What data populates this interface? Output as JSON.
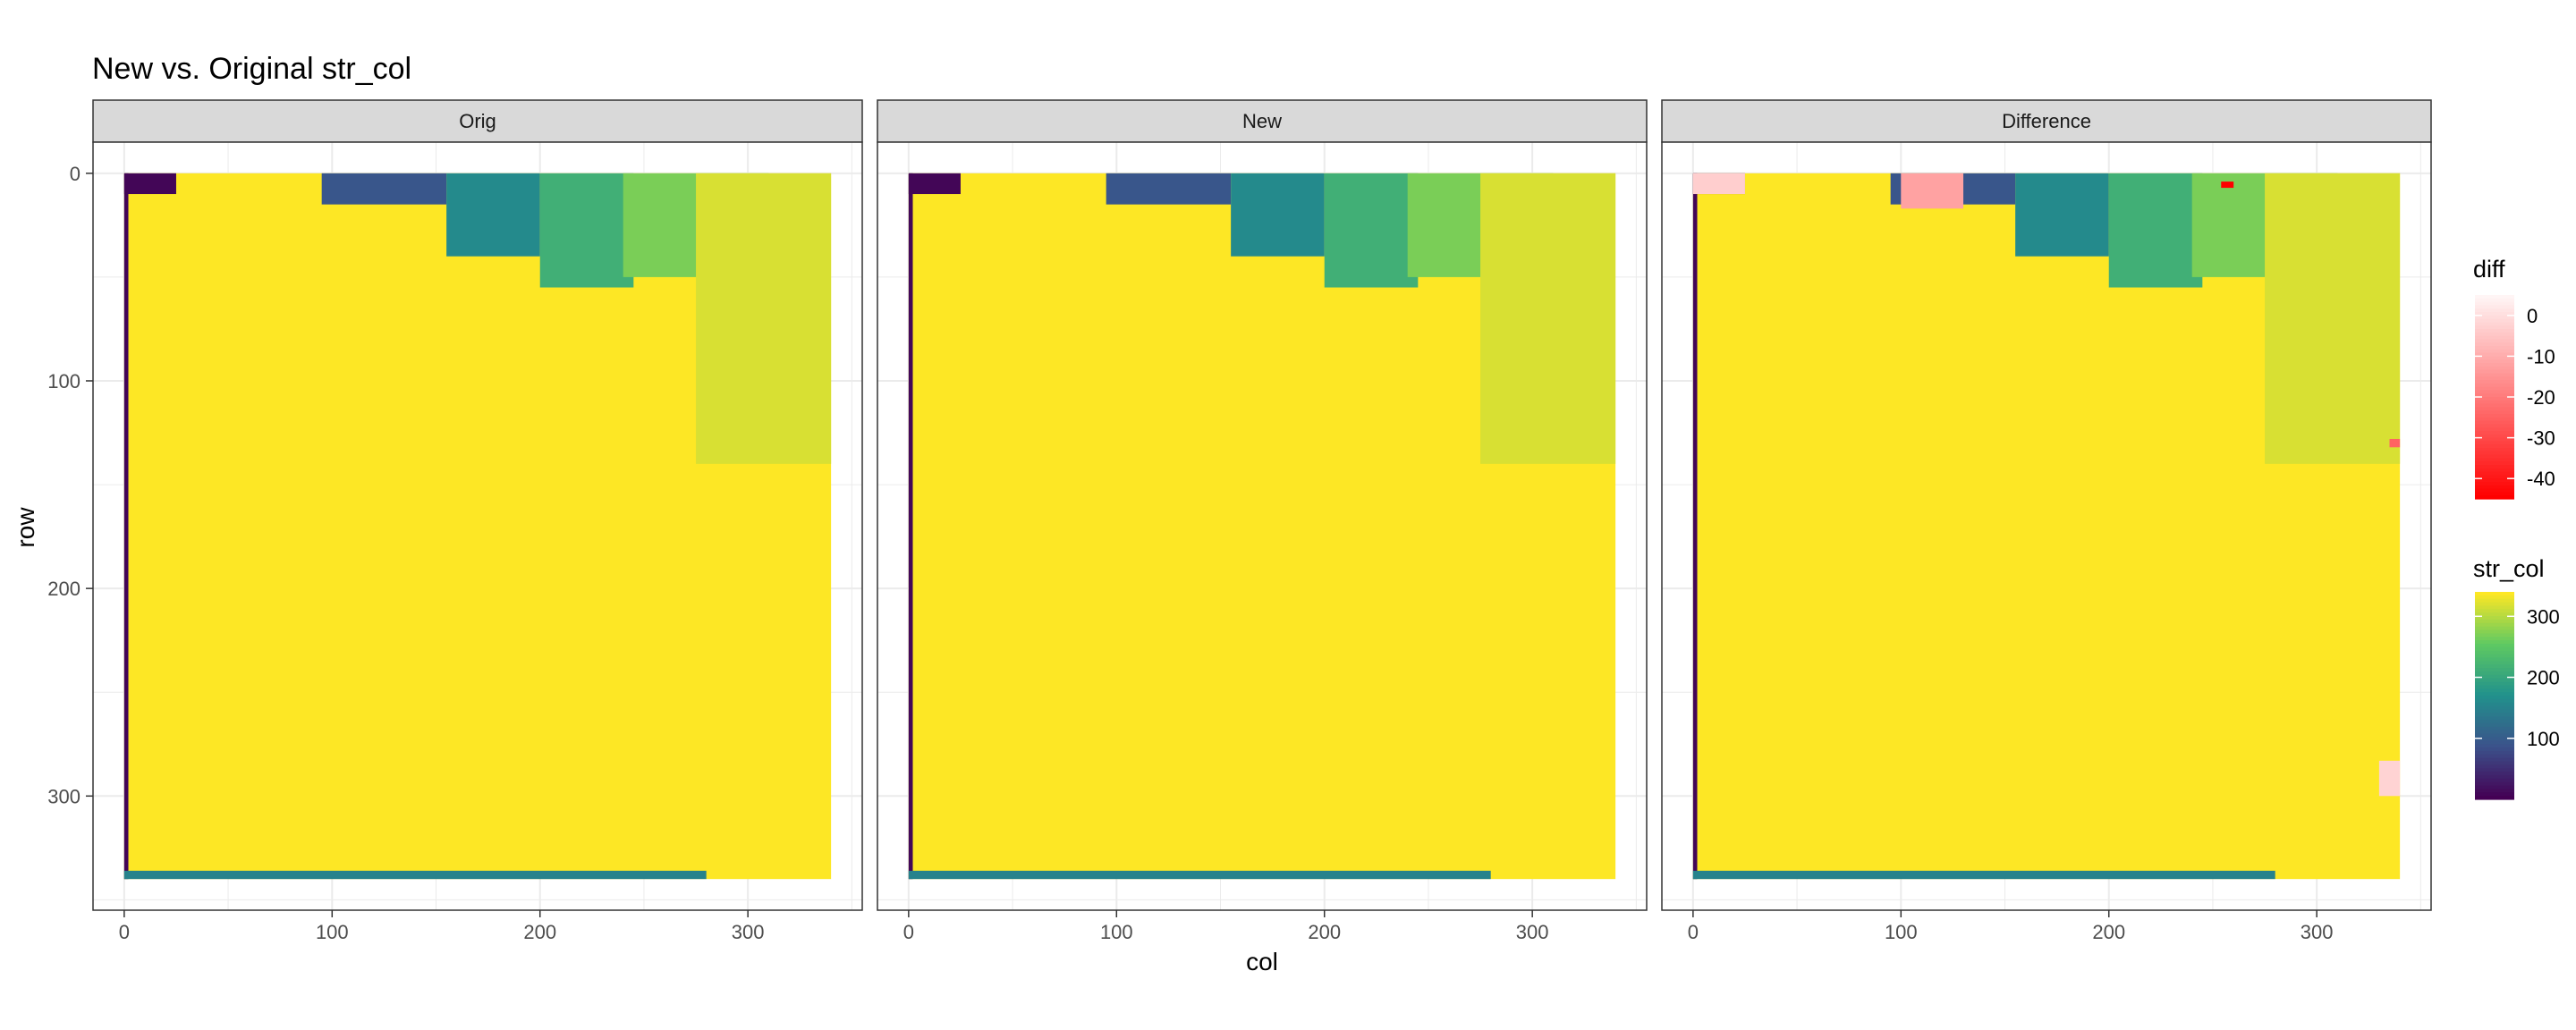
{
  "chart_data": {
    "type": "heatmap",
    "title": "New vs. Original str_col",
    "xlabel": "col",
    "ylabel": "row",
    "xlim": [
      -15,
      355
    ],
    "ylim": [
      -15,
      355
    ],
    "y_reversed": true,
    "grid": true,
    "x_ticks": [
      0,
      100,
      200,
      300
    ],
    "y_ticks": [
      0,
      100,
      200,
      300
    ],
    "x_tick_labels": [
      "0",
      "100",
      "200",
      "300"
    ],
    "y_tick_labels": [
      "0",
      "100",
      "200",
      "300"
    ],
    "data_extent": {
      "col": [
        0,
        340
      ],
      "row": [
        0,
        340
      ]
    },
    "panels": [
      {
        "label": "Orig",
        "key": "orig"
      },
      {
        "label": "New",
        "key": "new"
      },
      {
        "label": "Difference",
        "key": "diff"
      }
    ],
    "str_col_regions": [
      {
        "name": "left-edge strip",
        "str_col": 5,
        "col": [
          0,
          2
        ],
        "row": [
          0,
          340
        ]
      },
      {
        "name": "top-left corner",
        "str_col": 5,
        "col": [
          0,
          25
        ],
        "row": [
          0,
          10
        ]
      },
      {
        "name": "top region A",
        "str_col": 90,
        "col": [
          95,
          155
        ],
        "row": [
          0,
          15
        ]
      },
      {
        "name": "top region B",
        "str_col": 160,
        "col": [
          155,
          200
        ],
        "row": [
          0,
          40
        ]
      },
      {
        "name": "top region C",
        "str_col": 215,
        "col": [
          200,
          245
        ],
        "row": [
          0,
          55
        ]
      },
      {
        "name": "top region D",
        "str_col": 270,
        "col": [
          240,
          310
        ],
        "row": [
          0,
          50
        ]
      },
      {
        "name": "top-right region",
        "str_col": 320,
        "col": [
          275,
          340
        ],
        "row": [
          0,
          140
        ]
      },
      {
        "name": "bottom edge",
        "str_col": 150,
        "col": [
          0,
          280
        ],
        "row": [
          336,
          340
        ]
      }
    ],
    "background_str_col": 340,
    "diff_regions": [
      {
        "diff": -3,
        "col": [
          0,
          25
        ],
        "row": [
          0,
          10
        ]
      },
      {
        "diff": -12,
        "col": [
          100,
          130
        ],
        "row": [
          0,
          17
        ]
      },
      {
        "diff": -45,
        "col": [
          254,
          260
        ],
        "row": [
          4,
          7
        ]
      },
      {
        "diff": -25,
        "col": [
          335,
          340
        ],
        "row": [
          128,
          132
        ]
      },
      {
        "diff": -2,
        "col": [
          330,
          340
        ],
        "row": [
          283,
          300
        ]
      }
    ],
    "legends": [
      {
        "title": "diff",
        "palette": "white-to-red",
        "range": [
          -45,
          5
        ],
        "ticks": [
          0,
          -10,
          -20,
          -30,
          -40
        ],
        "tick_labels": [
          "0",
          "-10",
          "-20",
          "-30",
          "-40"
        ]
      },
      {
        "title": "str_col",
        "palette": "viridis",
        "range": [
          0,
          340
        ],
        "ticks": [
          300,
          200,
          100
        ],
        "tick_labels": [
          "300",
          "200",
          "100"
        ]
      }
    ],
    "colors": {
      "strip_bg": "#d9d9d9",
      "grid": "#ebebeb",
      "panel_border": "#333333",
      "viridis": [
        "#440154",
        "#3b528b",
        "#21918c",
        "#5ec962",
        "#fde725"
      ],
      "diff_palette": [
        "#ff0000",
        "#fff5f5"
      ]
    }
  }
}
